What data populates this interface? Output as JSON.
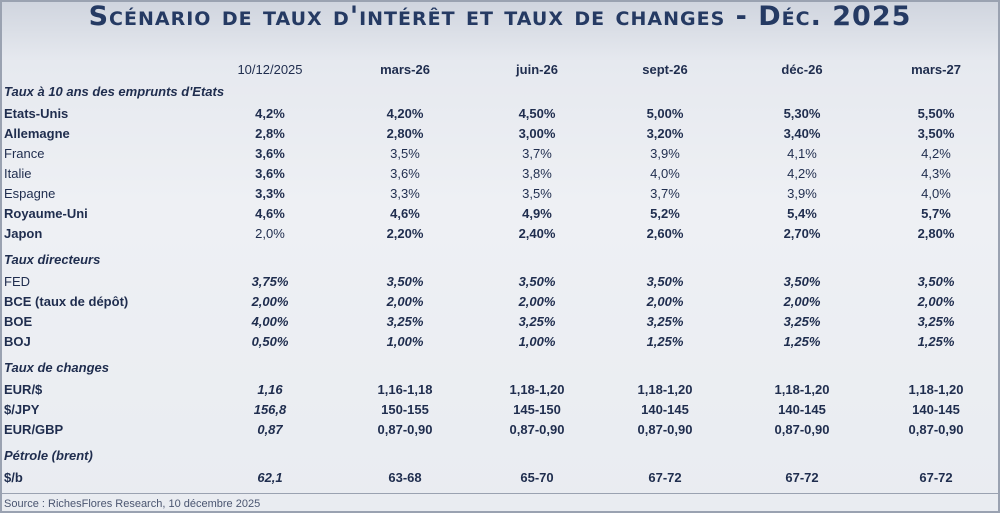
{
  "title": "Scénario de taux d'intérêt et taux de changes - Déc. 2025",
  "columns": [
    "10/12/2025",
    "mars-26",
    "juin-26",
    "sept-26",
    "déc-26",
    "mars-27"
  ],
  "sections": [
    {
      "label": "Taux à 10 ans des emprunts d'Etats",
      "rows": [
        {
          "label": "Etats-Unis",
          "values": [
            "4,2%",
            "4,20%",
            "4,50%",
            "5,00%",
            "5,30%",
            "5,50%"
          ]
        },
        {
          "label": "Allemagne",
          "values": [
            "2,8%",
            "2,80%",
            "3,00%",
            "3,20%",
            "3,40%",
            "3,50%"
          ]
        },
        {
          "label": "France",
          "values": [
            "3,6%",
            "3,5%",
            "3,7%",
            "3,9%",
            "4,1%",
            "4,2%"
          ]
        },
        {
          "label": "Italie",
          "values": [
            "3,6%",
            "3,6%",
            "3,8%",
            "4,0%",
            "4,2%",
            "4,3%"
          ]
        },
        {
          "label": "Espagne",
          "values": [
            "3,3%",
            "3,3%",
            "3,5%",
            "3,7%",
            "3,9%",
            "4,0%"
          ]
        },
        {
          "label": "Royaume-Uni",
          "values": [
            "4,6%",
            "4,6%",
            "4,9%",
            "5,2%",
            "5,4%",
            "5,7%"
          ]
        },
        {
          "label": "Japon",
          "values": [
            "2,0%",
            "2,20%",
            "2,40%",
            "2,60%",
            "2,70%",
            "2,80%"
          ]
        }
      ]
    },
    {
      "label": "Taux directeurs",
      "rows": [
        {
          "label": "FED",
          "values": [
            "3,75%",
            "3,50%",
            "3,50%",
            "3,50%",
            "3,50%",
            "3,50%"
          ]
        },
        {
          "label": "BCE (taux de dépôt)",
          "values": [
            "2,00%",
            "2,00%",
            "2,00%",
            "2,00%",
            "2,00%",
            "2,00%"
          ]
        },
        {
          "label": "BOE",
          "values": [
            "4,00%",
            "3,25%",
            "3,25%",
            "3,25%",
            "3,25%",
            "3,25%"
          ]
        },
        {
          "label": "BOJ",
          "values": [
            "0,50%",
            "1,00%",
            "1,00%",
            "1,25%",
            "1,25%",
            "1,25%"
          ]
        }
      ]
    },
    {
      "label": "Taux de changes",
      "rows": [
        {
          "label": "EUR/$",
          "values": [
            "1,16",
            "1,16-1,18",
            "1,18-1,20",
            "1,18-1,20",
            "1,18-1,20",
            "1,18-1,20"
          ]
        },
        {
          "label": "$/JPY",
          "values": [
            "156,8",
            "150-155",
            "145-150",
            "140-145",
            "140-145",
            "140-145"
          ]
        },
        {
          "label": "EUR/GBP",
          "values": [
            "0,87",
            "0,87-0,90",
            "0,87-0,90",
            "0,87-0,90",
            "0,87-0,90",
            "0,87-0,90"
          ]
        }
      ]
    },
    {
      "label": "Pétrole (brent)",
      "rows": [
        {
          "label": "$/b",
          "values": [
            "62,1",
            "63-68",
            "65-70",
            "67-72",
            "67-72",
            "67-72"
          ]
        }
      ]
    }
  ],
  "source": "Source : RichesFlores Research, 10 décembre 2025"
}
